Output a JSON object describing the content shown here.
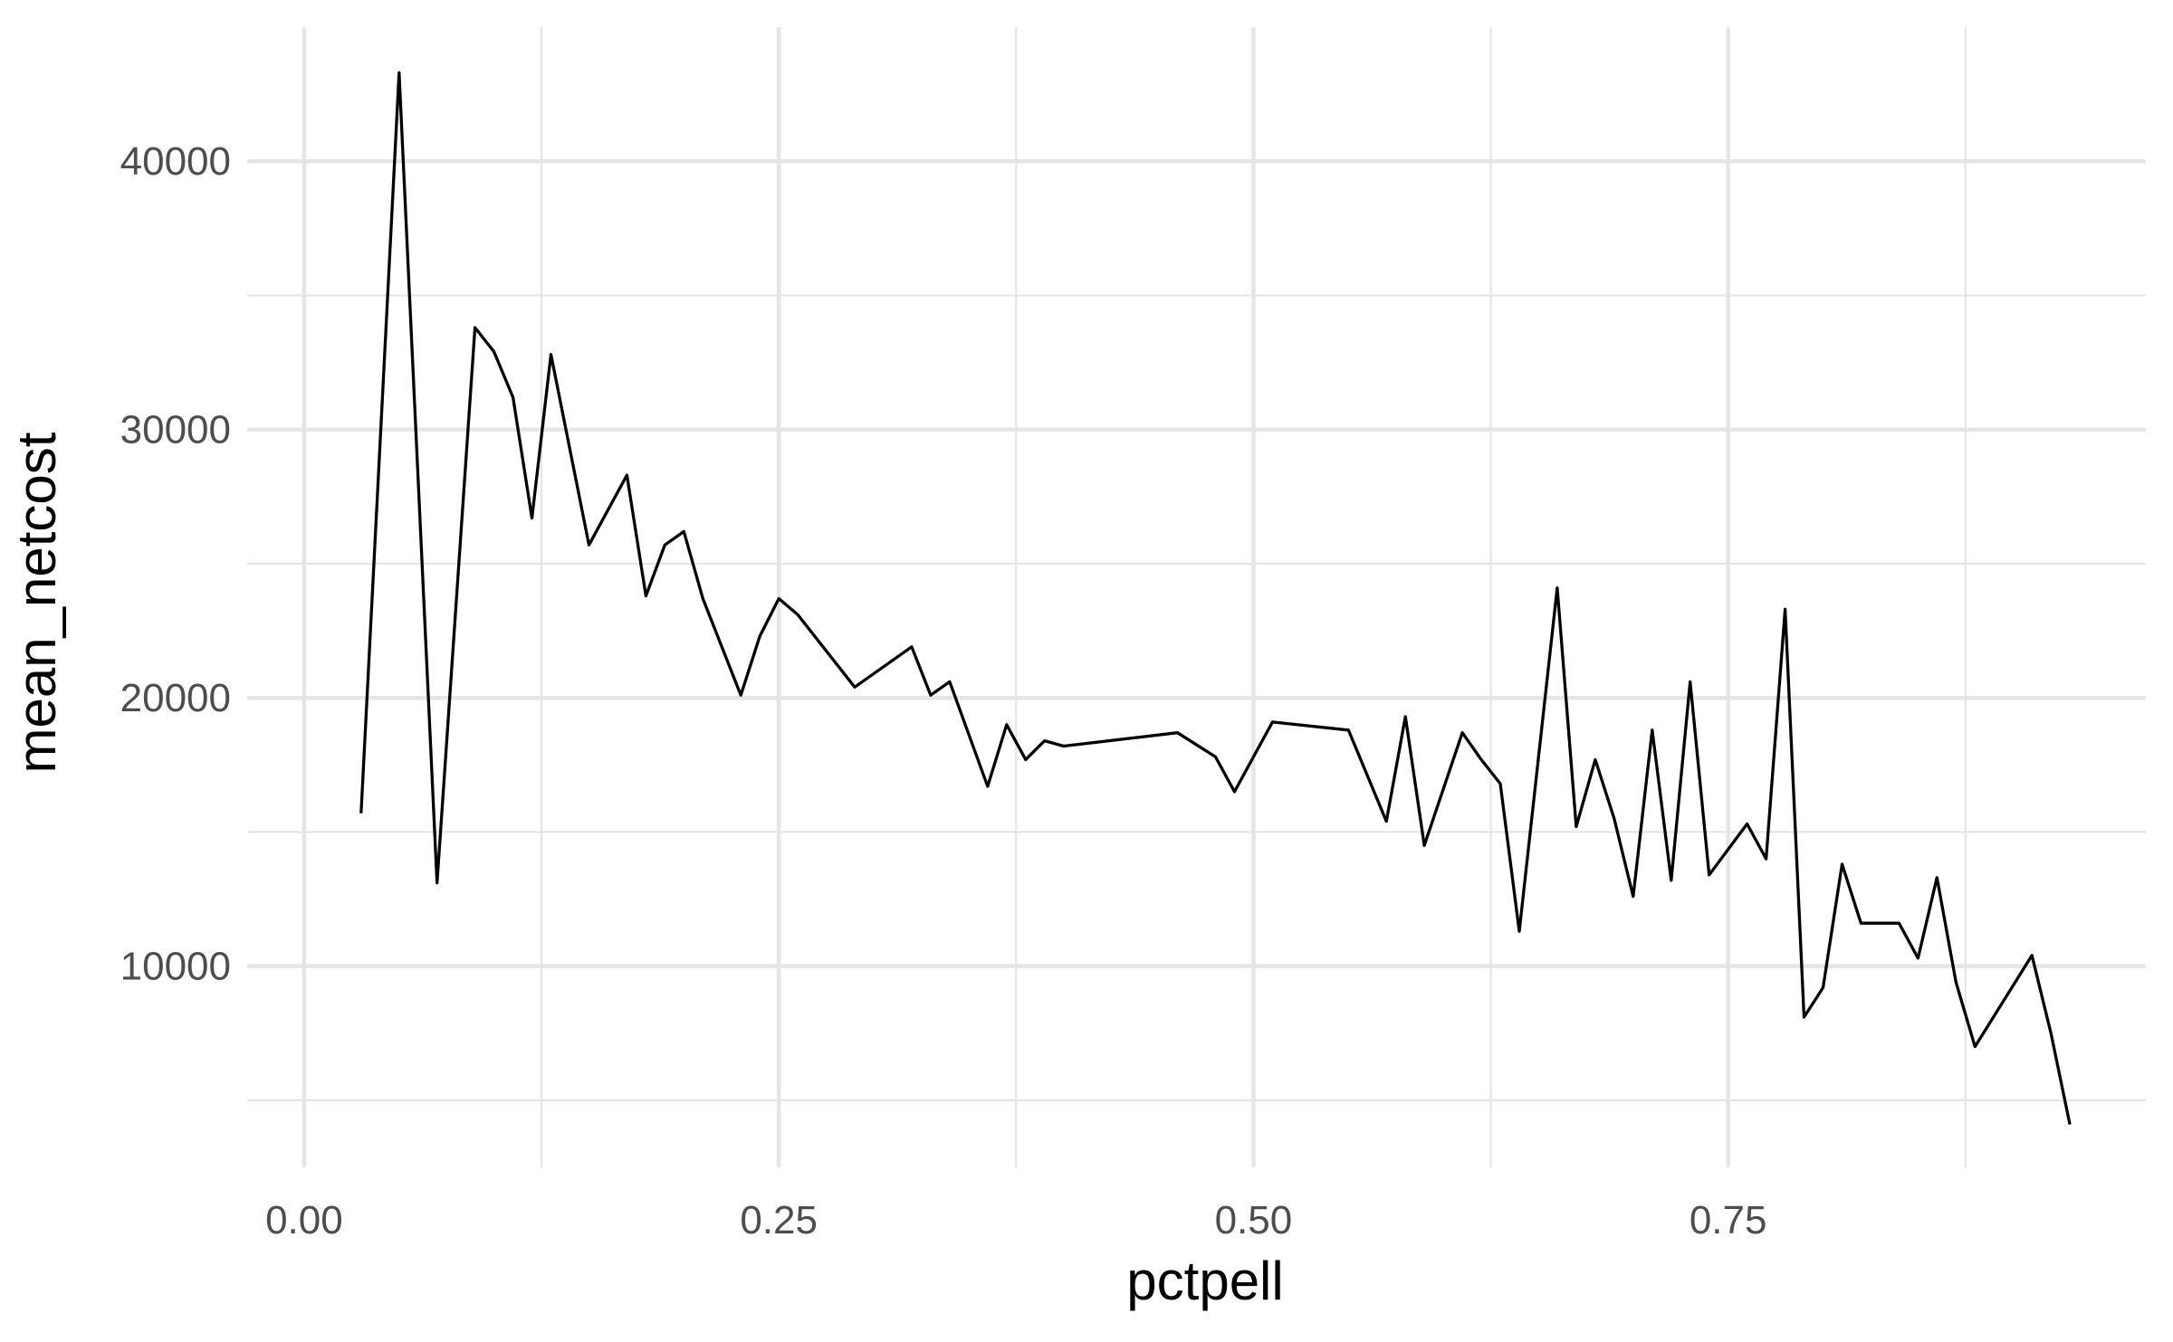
{
  "chart_data": {
    "type": "line",
    "title": "",
    "xlabel": "pctpell",
    "ylabel": "mean_netcost",
    "xlim": [
      -0.03,
      0.97
    ],
    "ylim": [
      2500,
      45000
    ],
    "x_ticks": [
      0.0,
      0.25,
      0.5,
      0.75
    ],
    "x_tick_labels": [
      "0.00",
      "0.25",
      "0.50",
      "0.75"
    ],
    "x_minor_ticks": [
      0.125,
      0.375,
      0.625,
      0.875
    ],
    "y_ticks": [
      10000,
      20000,
      30000,
      40000
    ],
    "y_tick_labels": [
      "10000",
      "20000",
      "30000",
      "40000"
    ],
    "y_minor_ticks": [
      5000,
      15000,
      25000,
      35000
    ],
    "grid": true,
    "legend": "none",
    "line_color": "#000000",
    "grid_color": "#e5e5e5",
    "series": [
      {
        "x": [
          0.03,
          0.05,
          0.07,
          0.09,
          0.1,
          0.11,
          0.12,
          0.13,
          0.15,
          0.17,
          0.18,
          0.19,
          0.2,
          0.21,
          0.23,
          0.24,
          0.25,
          0.26,
          0.27,
          0.29,
          0.32,
          0.33,
          0.34,
          0.36,
          0.37,
          0.38,
          0.39,
          0.4,
          0.46,
          0.48,
          0.49,
          0.51,
          0.55,
          0.57,
          0.58,
          0.59,
          0.61,
          0.62,
          0.63,
          0.64,
          0.66,
          0.67,
          0.68,
          0.69,
          0.7,
          0.71,
          0.72,
          0.73,
          0.74,
          0.76,
          0.77,
          0.78,
          0.79,
          0.8,
          0.81,
          0.82,
          0.84,
          0.85,
          0.86,
          0.87,
          0.88,
          0.91,
          0.92,
          0.93
        ],
        "values": [
          15700,
          43300,
          13100,
          33800,
          32900,
          31200,
          26700,
          32800,
          25700,
          28300,
          23800,
          25700,
          26200,
          23700,
          20100,
          22300,
          23700,
          23100,
          22200,
          20400,
          21900,
          20100,
          20600,
          16700,
          19000,
          17700,
          18400,
          18200,
          18700,
          17800,
          16500,
          19100,
          18800,
          15400,
          19300,
          14500,
          18700,
          17700,
          16800,
          11300,
          24100,
          15200,
          17700,
          15500,
          12600,
          18800,
          13200,
          20600,
          13400,
          15300,
          14000,
          23300,
          8100,
          9200,
          13800,
          11600,
          11600,
          10300,
          13300,
          9400,
          7000,
          10400,
          7500,
          4100
        ]
      }
    ]
  }
}
